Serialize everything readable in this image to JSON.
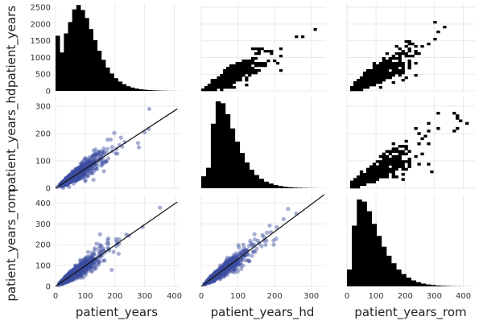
{
  "chart_data": {
    "type": "scatter",
    "layout": "pairplot-matrix",
    "variables": [
      "patient_years",
      "patient_years_hd",
      "patient_years_rom"
    ],
    "axis_labels": {
      "x": [
        "patient_years",
        "patient_years_hd",
        "patient_years_rom"
      ],
      "y": [
        "patient_years",
        "patient_years_hd",
        "patient_years_rom"
      ]
    },
    "xlim": {
      "patient_years": [
        0,
        420
      ],
      "patient_years_hd": [
        0,
        340
      ],
      "patient_years_rom": [
        0,
        440
      ]
    },
    "xticks": {
      "patient_years": [
        0,
        100,
        200,
        300,
        400
      ],
      "patient_years_hd": [
        0,
        100,
        200,
        300
      ],
      "patient_years_rom": [
        0,
        100,
        200,
        300,
        400
      ]
    },
    "row_ylim": [
      [
        0,
        2600
      ],
      [
        0,
        335
      ],
      [
        0,
        440
      ]
    ],
    "row_yticks": [
      [
        0,
        500,
        1000,
        1500,
        2000,
        2500
      ],
      [
        0,
        100,
        200,
        300
      ],
      [
        0,
        100,
        200,
        300,
        400
      ]
    ],
    "grid": true,
    "colors": {
      "histogram": "#000000",
      "scatter": "#3b4ea0",
      "fit_line": "#111111",
      "upper_panels": "#000000"
    },
    "histogram_counts": {
      "patient_years": [
        1650,
        1150,
        1720,
        2060,
        2440,
        2570,
        2420,
        2180,
        1850,
        1520,
        1200,
        930,
        700,
        520,
        380,
        280,
        200,
        140,
        100,
        70,
        50,
        35,
        25,
        18,
        12,
        8,
        5,
        3,
        2,
        1
      ],
      "patient_years_hd": [
        380,
        650,
        2050,
        2760,
        2700,
        2350,
        1900,
        1480,
        1120,
        820,
        590,
        420,
        300,
        210,
        150,
        100,
        70,
        48,
        33,
        22,
        15,
        10,
        6,
        4,
        2,
        1
      ],
      "patient_years_rom": [
        560,
        2020,
        2890,
        2820,
        2500,
        2080,
        1680,
        1320,
        1020,
        770,
        560,
        410,
        290,
        200,
        140,
        95,
        65,
        45,
        30,
        20,
        13,
        8,
        5,
        3,
        2,
        1
      ]
    },
    "histogram_edges": {
      "patient_years": [
        0,
        420
      ],
      "patient_years_hd": [
        0,
        340
      ],
      "patient_years_rom": [
        0,
        440
      ]
    },
    "fit_lines": {
      "hd_vs_years": [
        [
          0,
          0
        ],
        [
          410,
          290
        ]
      ],
      "rom_vs_years": [
        [
          0,
          0
        ],
        [
          410,
          405
        ]
      ],
      "rom_vs_hd": [
        [
          0,
          0
        ],
        [
          335,
          440
        ]
      ]
    },
    "scatter_relations": {
      "hd_per_year_slope": 0.71,
      "rom_per_year_slope": 0.99,
      "rom_per_hd_slope": 1.31
    }
  }
}
